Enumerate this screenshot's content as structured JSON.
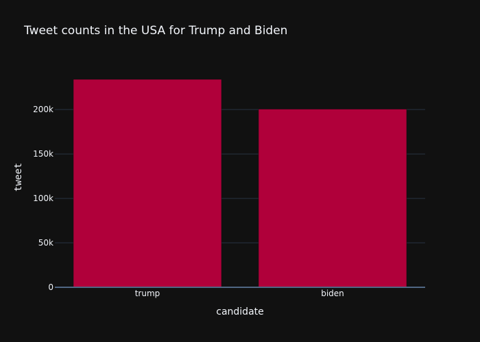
{
  "chart_data": {
    "type": "bar",
    "title": "Tweet counts in the USA for Trump and Biden",
    "xlabel": "candidate",
    "ylabel": "tweet",
    "categories": [
      "trump",
      "biden"
    ],
    "values": [
      234000,
      200500
    ],
    "ylim": [
      0,
      234000
    ],
    "yticks": [
      0,
      50000,
      100000,
      150000,
      200000
    ],
    "ytick_labels": [
      "0",
      "50k",
      "100k",
      "150k",
      "200k"
    ],
    "grid": true,
    "bar_color": "#b0003a",
    "background": "#111111"
  }
}
